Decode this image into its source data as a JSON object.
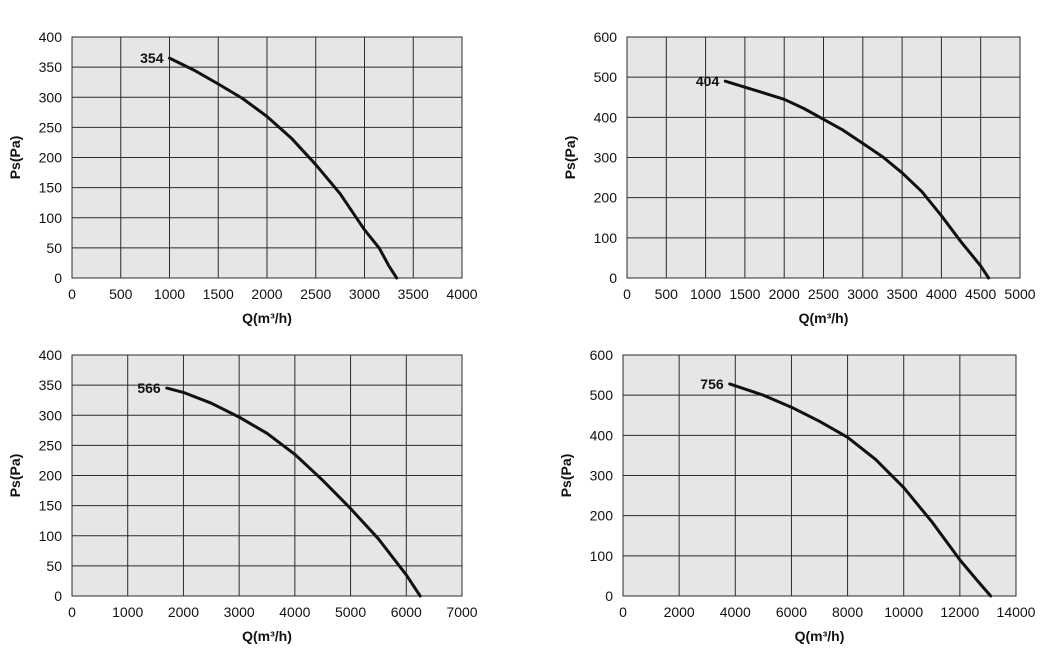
{
  "colors": {
    "plot_bg": "#e6e6e7",
    "grid": "#2b2b2b",
    "curve": "#111111",
    "text": "#111111"
  },
  "chart_data": [
    {
      "type": "line",
      "xlabel": "Q(m³/h)",
      "ylabel": "Ps(Pa)",
      "xlim": [
        0,
        4000
      ],
      "ylim": [
        0,
        400
      ],
      "xticks": [
        0,
        500,
        1000,
        1500,
        2000,
        2500,
        3000,
        3500,
        4000
      ],
      "yticks": [
        0,
        50,
        100,
        150,
        200,
        250,
        300,
        350,
        400
      ],
      "grid": true,
      "series": [
        {
          "name": "354",
          "x": [
            1000,
            1250,
            1500,
            1750,
            2000,
            2250,
            2500,
            2750,
            3000,
            3150,
            3250,
            3330
          ],
          "y": [
            365,
            345,
            322,
            298,
            268,
            232,
            188,
            140,
            80,
            50,
            20,
            0
          ]
        }
      ]
    },
    {
      "type": "line",
      "xlabel": "Q(m³/h)",
      "ylabel": "Ps(Pa)",
      "xlim": [
        0,
        5000
      ],
      "ylim": [
        0,
        600
      ],
      "xticks": [
        0,
        500,
        1000,
        1500,
        2000,
        2500,
        3000,
        3500,
        4000,
        4500,
        5000
      ],
      "yticks": [
        0,
        100,
        200,
        300,
        400,
        500,
        600
      ],
      "grid": true,
      "series": [
        {
          "name": "404",
          "x": [
            1250,
            1500,
            1750,
            2000,
            2250,
            2500,
            2750,
            3000,
            3250,
            3500,
            3750,
            4000,
            4250,
            4500,
            4600
          ],
          "y": [
            490,
            475,
            460,
            445,
            422,
            395,
            368,
            335,
            302,
            262,
            215,
            155,
            90,
            30,
            0
          ]
        }
      ]
    },
    {
      "type": "line",
      "xlabel": "Q(m³/h)",
      "ylabel": "Ps(Pa)",
      "xlim": [
        0,
        7000
      ],
      "ylim": [
        0,
        400
      ],
      "xticks": [
        0,
        1000,
        2000,
        3000,
        4000,
        5000,
        6000,
        7000
      ],
      "yticks": [
        0,
        50,
        100,
        150,
        200,
        250,
        300,
        350,
        400
      ],
      "grid": true,
      "series": [
        {
          "name": "566",
          "x": [
            1700,
            2000,
            2500,
            3000,
            3500,
            4000,
            4500,
            5000,
            5500,
            6000,
            6250
          ],
          "y": [
            345,
            338,
            320,
            297,
            270,
            235,
            192,
            145,
            95,
            35,
            0
          ]
        }
      ]
    },
    {
      "type": "line",
      "xlabel": "Q(m³/h)",
      "ylabel": "Ps(Pa)",
      "xlim": [
        0,
        14000
      ],
      "ylim": [
        0,
        600
      ],
      "xticks": [
        0,
        2000,
        4000,
        6000,
        8000,
        10000,
        12000,
        14000
      ],
      "yticks": [
        0,
        100,
        200,
        300,
        400,
        500,
        600
      ],
      "grid": true,
      "series": [
        {
          "name": "756",
          "x": [
            3800,
            5000,
            6000,
            7000,
            8000,
            9000,
            10000,
            11000,
            12000,
            12600,
            13100
          ],
          "y": [
            528,
            500,
            470,
            435,
            395,
            340,
            270,
            185,
            90,
            40,
            0
          ]
        }
      ]
    }
  ]
}
